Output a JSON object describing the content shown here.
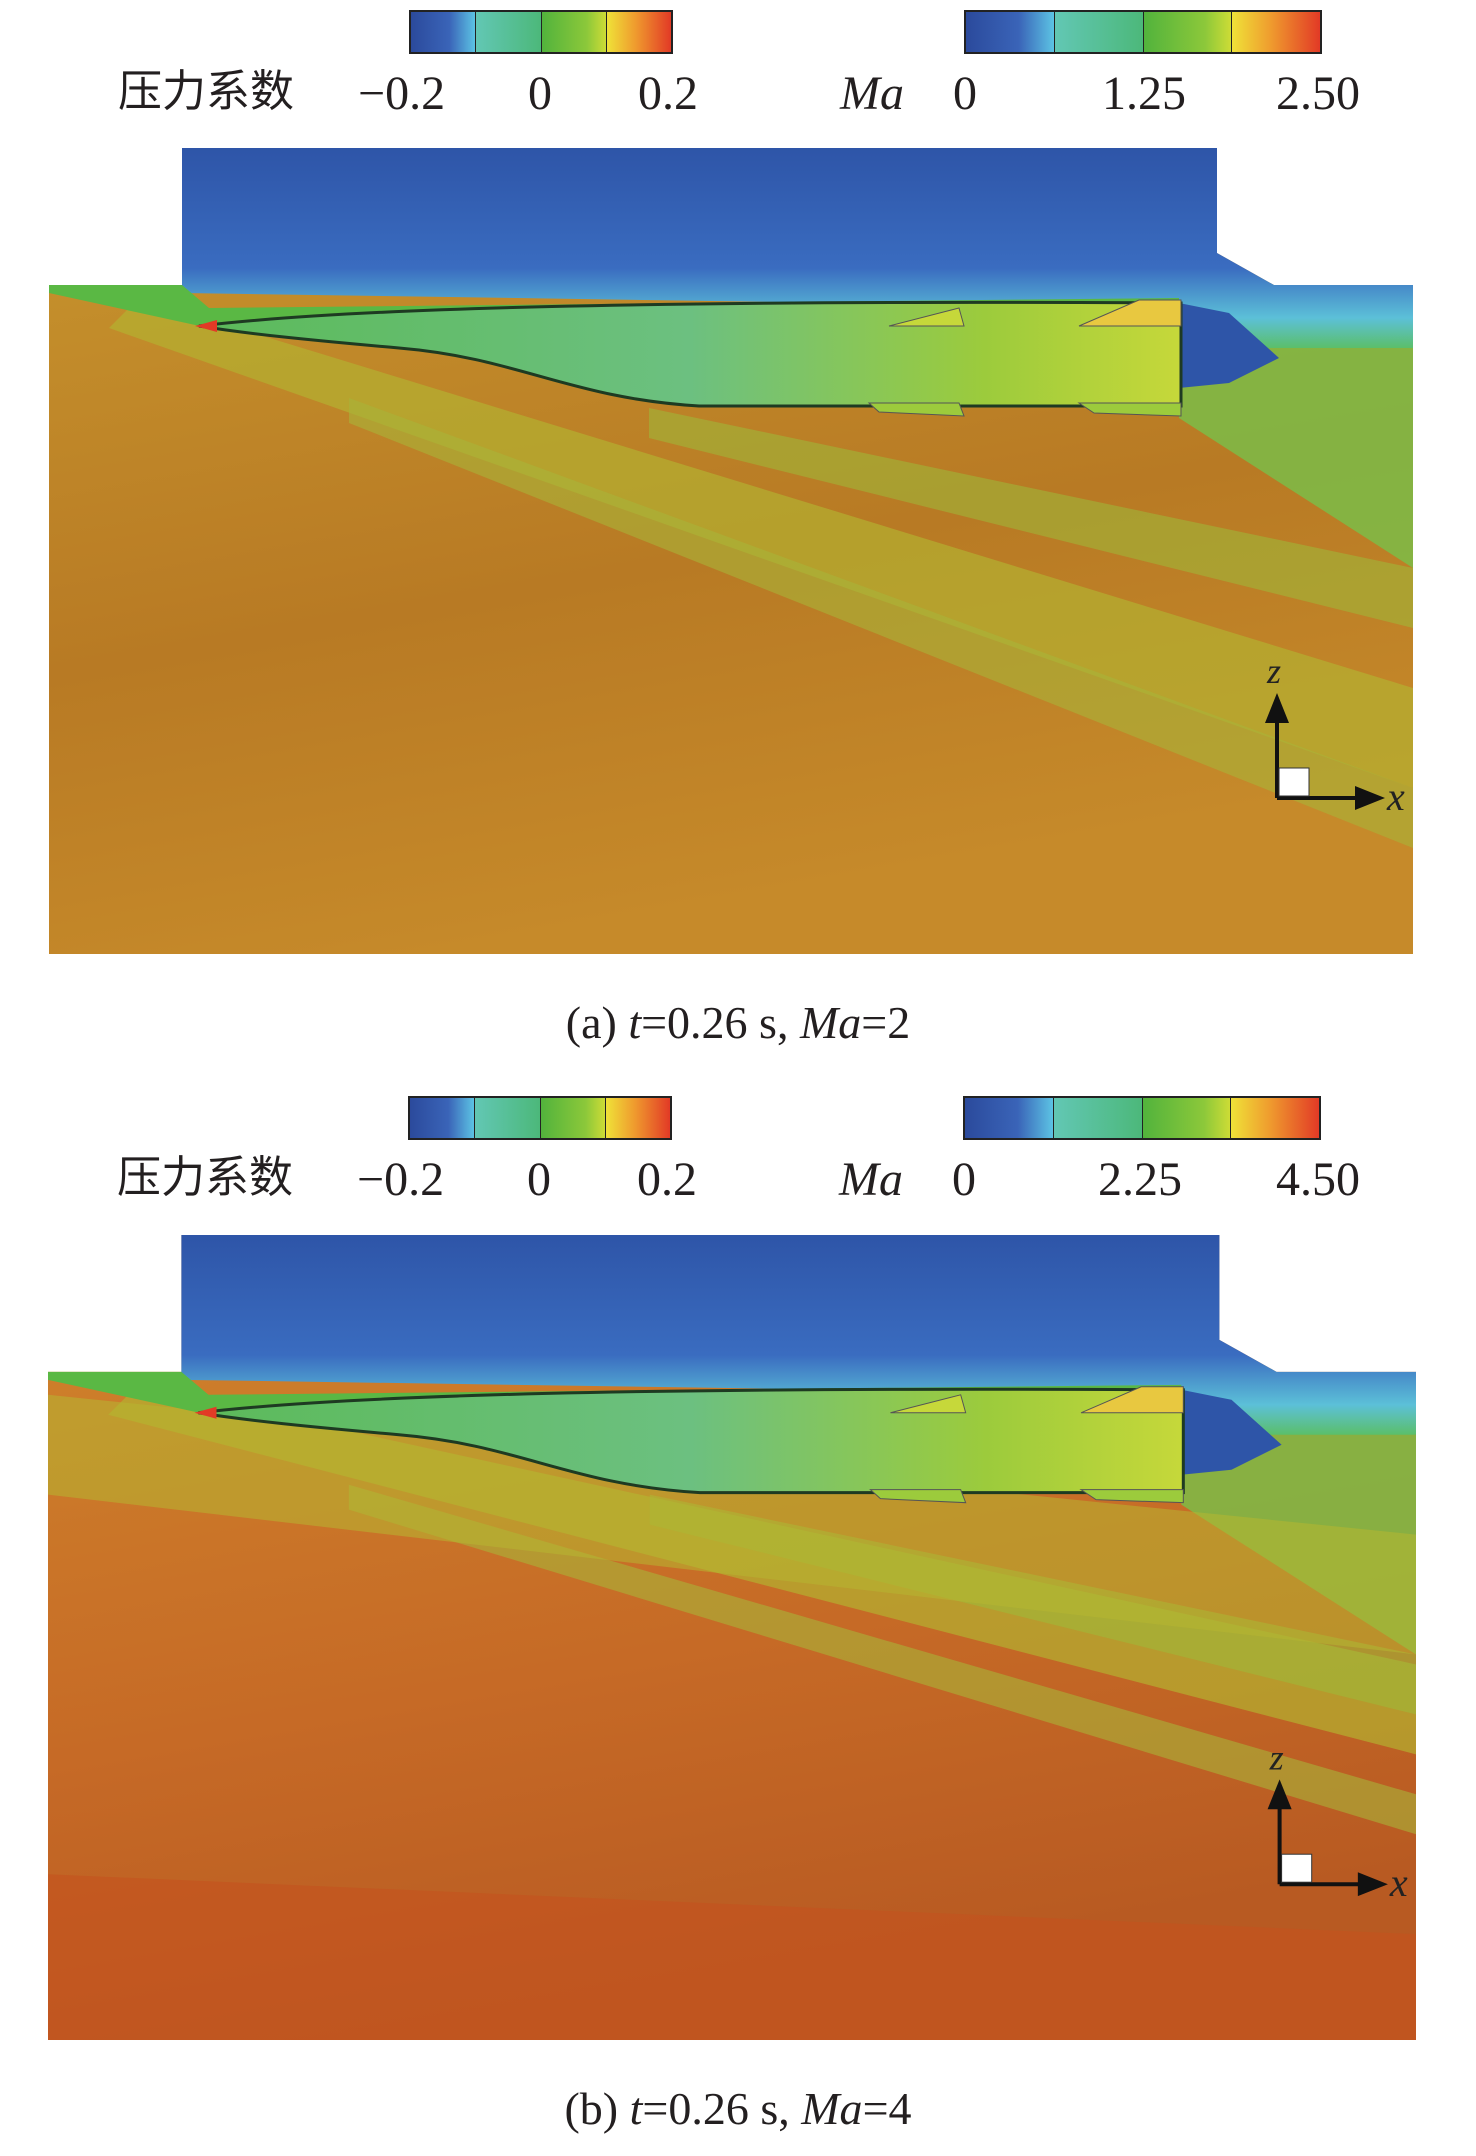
{
  "panels": [
    {
      "pressure_legend": {
        "title": "压力系数",
        "ticks": [
          "−0.2",
          "0",
          "0.2"
        ]
      },
      "mach_legend": {
        "title": "Ma",
        "ticks": [
          "0",
          "1.25",
          "2.50"
        ]
      },
      "axes": {
        "z": "z",
        "x": "x"
      },
      "caption": {
        "prefix": "(a) ",
        "t_var": "t",
        "t_val": "=0.26 s, ",
        "ma_var": "Ma",
        "ma_val": "=2"
      }
    },
    {
      "pressure_legend": {
        "title": "压力系数",
        "ticks": [
          "−0.2",
          "0",
          "0.2"
        ]
      },
      "mach_legend": {
        "title": "Ma",
        "ticks": [
          "0",
          "2.25",
          "4.50"
        ]
      },
      "axes": {
        "z": "z",
        "x": "x"
      },
      "caption": {
        "prefix": "(b) ",
        "t_var": "t",
        "t_val": "=0.26 s, ",
        "ma_var": "Ma",
        "ma_val": "=4"
      }
    }
  ],
  "colormap": [
    "#2b4a9c",
    "#5cc3e4",
    "#4cb87a",
    "#8cc83a",
    "#efe238",
    "#e23a26"
  ]
}
